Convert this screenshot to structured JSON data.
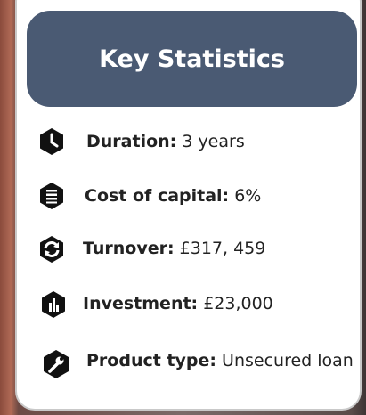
{
  "header": {
    "title": "Key Statistics"
  },
  "items": [
    {
      "label": "Duration:",
      "value": "3 years"
    },
    {
      "label": "Cost of capital:",
      "value": "6%"
    },
    {
      "label": "Turnover:",
      "value": "£317, 459"
    },
    {
      "label": "Investment:",
      "value": "£23,000"
    },
    {
      "label": "Product type:",
      "value": "Unsecured loan"
    }
  ]
}
